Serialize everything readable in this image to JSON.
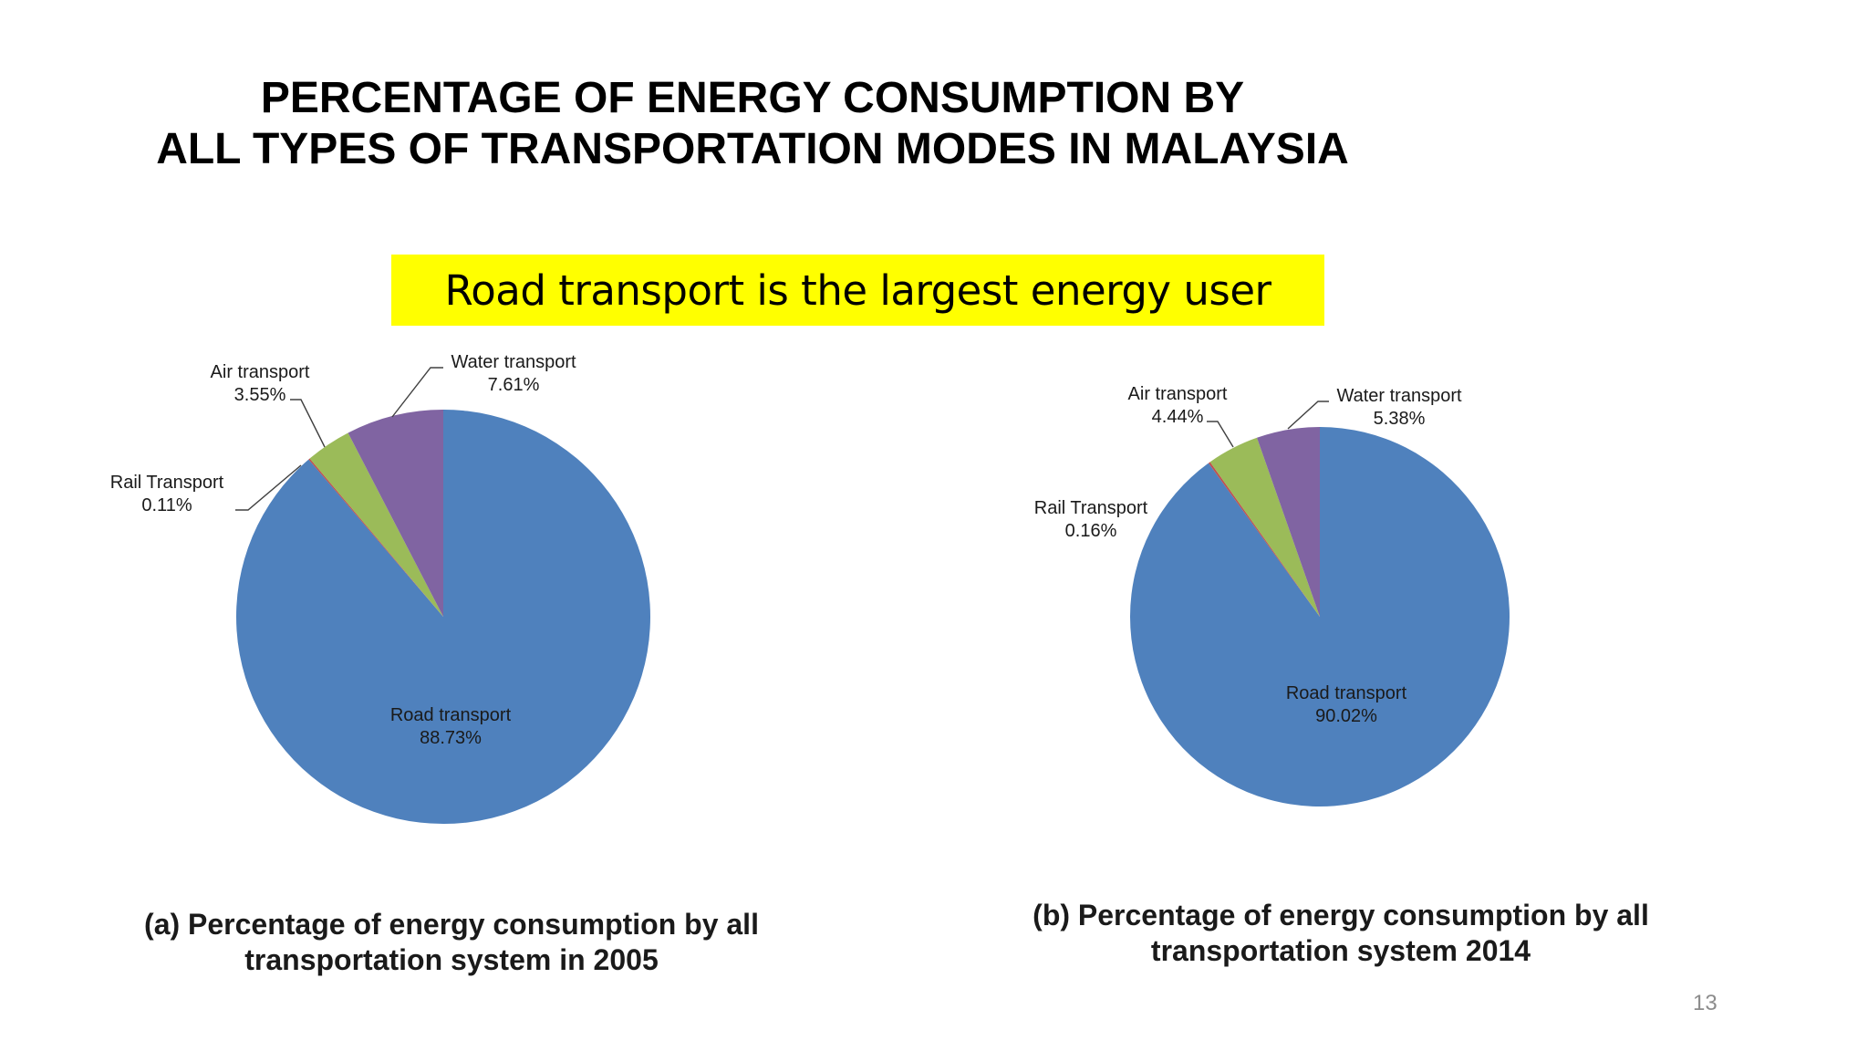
{
  "slide": {
    "title_line1": "PERCENTAGE OF ENERGY CONSUMPTION BY",
    "title_line2": "ALL TYPES OF TRANSPORTATION MODES IN MALAYSIA",
    "banner": "Road transport is the largest energy user",
    "banner_color": "#ffff00",
    "page_number": "13"
  },
  "chart_data": [
    {
      "type": "pie",
      "caption_line1": "(a) Percentage of energy consumption by all",
      "caption_line2": "transportation system in 2005",
      "slices": [
        {
          "name": "Road transport",
          "value": 88.73,
          "label": "88.73%",
          "color": "#4f81bd"
        },
        {
          "name": "Rail Transport",
          "value": 0.11,
          "label": "0.11%",
          "color": "#c0504d"
        },
        {
          "name": "Air transport",
          "value": 3.55,
          "label": "3.55%",
          "color": "#9bbb59"
        },
        {
          "name": "Water transport",
          "value": 7.61,
          "label": "7.61%",
          "color": "#8064a2"
        }
      ]
    },
    {
      "type": "pie",
      "caption_line1": "(b) Percentage of energy consumption by all",
      "caption_line2": "transportation system 2014",
      "slices": [
        {
          "name": "Road transport",
          "value": 90.02,
          "label": "90.02%",
          "color": "#4f81bd"
        },
        {
          "name": "Rail Transport",
          "value": 0.16,
          "label": "0.16%",
          "color": "#c0504d"
        },
        {
          "name": "Air transport",
          "value": 4.44,
          "label": "4.44%",
          "color": "#9bbb59"
        },
        {
          "name": "Water transport",
          "value": 5.38,
          "label": "5.38%",
          "color": "#8064a2"
        }
      ]
    }
  ]
}
